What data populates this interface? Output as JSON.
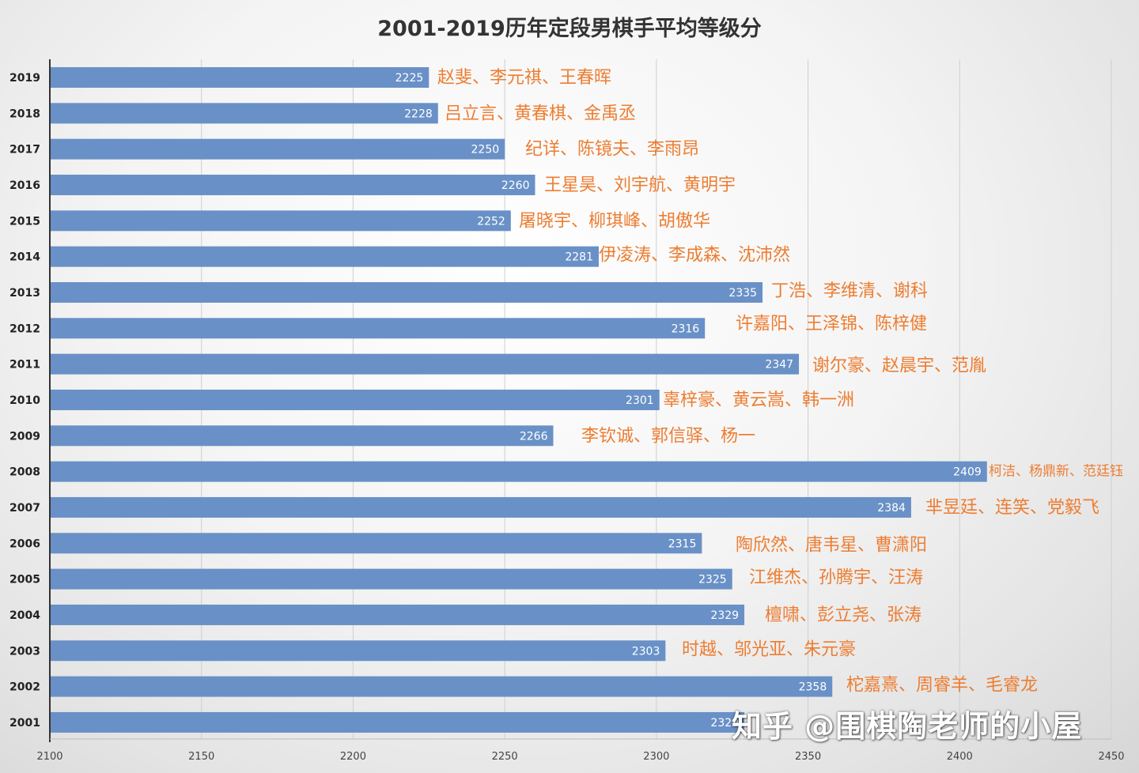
{
  "chart_data": {
    "type": "bar",
    "orientation": "horizontal",
    "title": "2001-2019历年定段男棋手平均等级分",
    "categories": [
      "2019",
      "2018",
      "2017",
      "2016",
      "2015",
      "2014",
      "2013",
      "2012",
      "2011",
      "2010",
      "2009",
      "2008",
      "2007",
      "2006",
      "2005",
      "2004",
      "2003",
      "2002",
      "2001"
    ],
    "values": [
      2225,
      2228,
      2250,
      2260,
      2252,
      2281,
      2335,
      2316,
      2347,
      2301,
      2266,
      2409,
      2384,
      2315,
      2325,
      2329,
      2303,
      2358,
      2329
    ],
    "annotations": [
      "赵斐、李元祺、王春晖",
      "吕立言、黄春棋、金禹丞",
      "纪详、陈镜夫、李雨昂",
      "王星昊、刘宇航、黄明宇",
      "屠晓宇、柳琪峰、胡傲华",
      "伊凌涛、李成森、沈沛然",
      "丁浩、李维清、谢科",
      "许嘉阳、王泽锦、陈梓健",
      "谢尔豪、赵晨宇、范胤",
      "辜梓豪、黄云嵩、韩一洲",
      "李钦诚、郭信驿、杨一",
      "柯洁、杨鼎新、范廷钰",
      "芈昱廷、连笑、党毅飞",
      "陶欣然、唐韦星、曹潇阳",
      "江维杰、孙腾宇、汪涛",
      "檀啸、彭立尧、张涛",
      "时越、邬光亚、朱元豪",
      "柁嘉熹、周睿羊、毛睿龙",
      ""
    ],
    "xlim": [
      2100,
      2450
    ],
    "xticks": [
      2100,
      2150,
      2200,
      2250,
      2300,
      2350,
      2400,
      2450
    ],
    "xlabel": "",
    "ylabel": "",
    "grid": "vertical",
    "legend": "none",
    "bar_color": "#6991c7",
    "annotation_color": "#ed7d31",
    "value_label_color": "#ffffff"
  },
  "watermark": "知乎 @围棋陶老师的小屋"
}
